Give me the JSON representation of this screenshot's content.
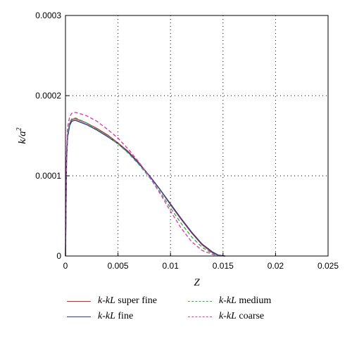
{
  "chart_data": {
    "type": "line",
    "xlabel": "Z",
    "ylabel_main": "k",
    "ylabel_sub": "a",
    "ylabel_sup": "2",
    "xlim": [
      0,
      0.025
    ],
    "ylim": [
      0,
      0.0003
    ],
    "x_ticks": [
      0,
      0.005,
      0.01,
      0.015,
      0.02,
      0.025
    ],
    "x_tick_labels": [
      "0",
      "0.005",
      "0.01",
      "0.015",
      "0.02",
      "0.025"
    ],
    "y_ticks": [
      0,
      0.0001,
      0.0002,
      0.0003
    ],
    "y_tick_labels": [
      "0",
      "0.0001",
      "0.0002",
      "0.0003"
    ],
    "grid": "dotted",
    "legend_position": "bottom",
    "series": [
      {
        "name_italic": "k-kL",
        "name_rest": " super fine",
        "color": "#d9242b",
        "dash": "solid",
        "x": [
          0,
          0.0001,
          0.0002,
          0.0004,
          0.0006,
          0.0008,
          0.001,
          0.002,
          0.003,
          0.004,
          0.005,
          0.006,
          0.007,
          0.008,
          0.009,
          0.01,
          0.011,
          0.012,
          0.013,
          0.014,
          0.0145,
          0.015,
          0.0152
        ],
        "y": [
          0,
          0.00012,
          0.00015,
          0.000165,
          0.00017,
          0.000171,
          0.000171,
          0.000166,
          0.000159,
          0.000151,
          0.000141,
          0.00013,
          0.000116,
          0.0001,
          8.3e-05,
          6.4e-05,
          4.6e-05,
          2.9e-05,
          1.4e-05,
          4e-06,
          1e-06,
          2e-07,
          0
        ]
      },
      {
        "name_italic": "k-kL",
        "name_rest": " fine",
        "color": "#2e3c9c",
        "dash": "solid",
        "x": [
          0,
          0.0001,
          0.0002,
          0.0004,
          0.0006,
          0.0008,
          0.001,
          0.002,
          0.003,
          0.004,
          0.005,
          0.006,
          0.007,
          0.008,
          0.009,
          0.01,
          0.011,
          0.012,
          0.013,
          0.014,
          0.0145,
          0.015,
          0.0152
        ],
        "y": [
          0,
          0.000118,
          0.000148,
          0.000163,
          0.000168,
          0.000169,
          0.000169,
          0.000164,
          0.000157,
          0.000149,
          0.00014,
          0.000129,
          0.000115,
          0.0001,
          8.3e-05,
          6.5e-05,
          4.7e-05,
          3e-05,
          1.5e-05,
          5e-06,
          1.5e-06,
          3e-07,
          0
        ]
      },
      {
        "name_italic": "k-kL",
        "name_rest": " medium",
        "color": "#2fb34a",
        "dash": "dashed",
        "x": [
          0,
          0.0001,
          0.0002,
          0.0004,
          0.0006,
          0.0008,
          0.001,
          0.002,
          0.003,
          0.004,
          0.005,
          0.006,
          0.007,
          0.008,
          0.009,
          0.01,
          0.011,
          0.012,
          0.013,
          0.014,
          0.0145,
          0.015
        ],
        "y": [
          0,
          0.000122,
          0.000152,
          0.000167,
          0.000171,
          0.000172,
          0.000172,
          0.000166,
          0.000158,
          0.00015,
          0.00014,
          0.000128,
          0.000114,
          9.8e-05,
          8e-05,
          6e-05,
          4.1e-05,
          2.4e-05,
          1.1e-05,
          3e-06,
          8e-07,
          0
        ]
      },
      {
        "name_italic": "k-kL",
        "name_rest": " coarse",
        "color": "#e03fb6",
        "dash": "dashed",
        "x": [
          0,
          0.0001,
          0.0002,
          0.0004,
          0.0006,
          0.0008,
          0.001,
          0.002,
          0.003,
          0.004,
          0.005,
          0.006,
          0.007,
          0.008,
          0.009,
          0.01,
          0.011,
          0.012,
          0.013,
          0.014,
          0.0145,
          0.0148
        ],
        "y": [
          0,
          0.00013,
          0.00016,
          0.000174,
          0.000178,
          0.000179,
          0.000179,
          0.000175,
          0.000168,
          0.000158,
          0.000147,
          0.000133,
          0.000117,
          9.9e-05,
          7.8e-05,
          5.6e-05,
          3.5e-05,
          1.8e-05,
          7e-06,
          2e-06,
          5e-07,
          0
        ]
      }
    ]
  }
}
